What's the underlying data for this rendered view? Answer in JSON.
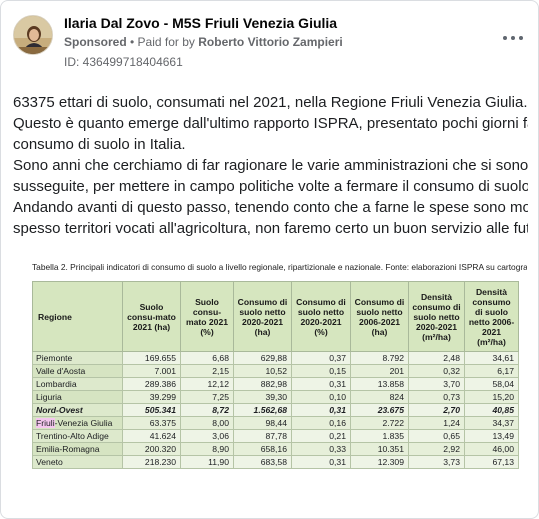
{
  "post": {
    "author": "Ilaria Dal Zovo - M5S Friuli Venezia Giulia",
    "sponsored_label": "Sponsored",
    "paid_prefix": "Paid for by",
    "payer": "Roberto Vittorio Zampieri",
    "ad_id": "ID: 436499718404661",
    "text_lines": [
      "63375 ettari di suolo, consumati nel 2021, nella Regione Friuli Venezia Giulia.",
      "Questo è quanto emerge dall'ultimo rapporto ISPRA, presentato pochi giorni fa, sul",
      "consumo di suolo in Italia.",
      "Sono anni che cerchiamo di far ragionare le varie amministrazioni che si sono",
      "susseguite, per mettere in campo politiche volte a fermare il consumo di suolo.",
      "Andando avanti di questo passo, tenendo conto che a farne le spese sono molto",
      "spesso territori vocati all'agricoltura, non faremo certo un buon servizio alle futur..."
    ]
  },
  "table_image": {
    "caption": "Tabella 2. Principali indicatori di consumo di suolo a livello regionale, ripartizionale e nazionale. Fonte: elaborazioni ISPRA su cartografia SNPA",
    "headers": [
      "Regione",
      "Suolo consu-mato 2021 (ha)",
      "Suolo consu-mato 2021 (%)",
      "Consumo di suolo netto 2020-2021 (ha)",
      "Consumo di suolo netto 2020-2021 (%)",
      "Consumo di suolo netto 2006-2021 (ha)",
      "Densità consumo di suolo netto 2020-2021 (m²/ha)",
      "Densità consumo di suolo netto 2006-2021 (m²/ha)"
    ],
    "rows": [
      [
        "Piemonte",
        "169.655",
        "6,68",
        "629,88",
        "0,37",
        "8.792",
        "2,48",
        "34,61"
      ],
      [
        "Valle d'Aosta",
        "7.001",
        "2,15",
        "10,52",
        "0,15",
        "201",
        "0,32",
        "6,17"
      ],
      [
        "Lombardia",
        "289.386",
        "12,12",
        "882,98",
        "0,31",
        "13.858",
        "3,70",
        "58,04"
      ],
      [
        "Liguria",
        "39.299",
        "7,25",
        "39,30",
        "0,10",
        "824",
        "0,73",
        "15,20"
      ],
      [
        "Nord-Ovest",
        "505.341",
        "8,72",
        "1.562,68",
        "0,31",
        "23.675",
        "2,70",
        "40,85"
      ],
      [
        "Friuli-Venezia Giulia",
        "63.375",
        "8,00",
        "98,44",
        "0,16",
        "2.722",
        "1,24",
        "34,37"
      ],
      [
        "Trentino-Alto Adige",
        "41.624",
        "3,06",
        "87,78",
        "0,21",
        "1.835",
        "0,65",
        "13,49"
      ],
      [
        "Emilia-Romagna",
        "200.320",
        "8,90",
        "658,16",
        "0,33",
        "10.351",
        "2,92",
        "46,00"
      ],
      [
        "Veneto",
        "218.230",
        "11,90",
        "683,58",
        "0,31",
        "12.309",
        "3,73",
        "67,13"
      ]
    ],
    "highlight_word": "Friuli"
  }
}
